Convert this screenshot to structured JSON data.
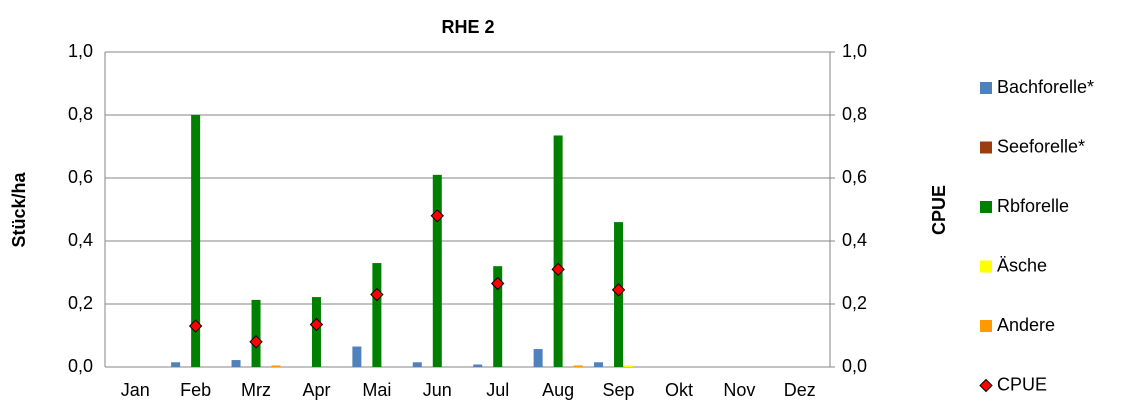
{
  "chart_data": {
    "type": "bar",
    "title": "RHE 2",
    "y_label": "Stück/ha",
    "y2_label": "CPUE",
    "categories": [
      "Jan",
      "Feb",
      "Mrz",
      "Apr",
      "Mai",
      "Jun",
      "Jul",
      "Aug",
      "Sep",
      "Okt",
      "Nov",
      "Dez"
    ],
    "series": [
      {
        "name": "Bachforelle*",
        "color": "#4f81bd",
        "values": [
          0,
          0.015,
          0.022,
          0,
          0.065,
          0.015,
          0.008,
          0.057,
          0.015,
          0,
          0,
          0
        ]
      },
      {
        "name": "Seeforelle*",
        "color": "#9c3d10",
        "values": [
          0,
          0,
          0,
          0,
          0,
          0,
          0,
          0,
          0,
          0,
          0,
          0
        ]
      },
      {
        "name": "Rbforelle",
        "color": "#008000",
        "values": [
          0,
          0.8,
          0.213,
          0.222,
          0.33,
          0.61,
          0.32,
          0.735,
          0.46,
          0,
          0,
          0
        ]
      },
      {
        "name": "Äsche",
        "color": "#ffff00",
        "values": [
          0,
          0,
          0,
          0,
          0,
          0,
          0,
          0,
          0.005,
          0,
          0,
          0
        ]
      },
      {
        "name": "Andere",
        "color": "#ff9900",
        "values": [
          0,
          0,
          0.005,
          0,
          0,
          0,
          0,
          0.005,
          0,
          0,
          0,
          0
        ]
      },
      {
        "name": "CPUE",
        "color": "#ff0000",
        "type": "scatter",
        "axis": "y2",
        "values": [
          null,
          0.13,
          0.08,
          0.135,
          0.23,
          0.48,
          0.265,
          0.31,
          0.245,
          null,
          null,
          null
        ]
      }
    ],
    "ylim": [
      0,
      1
    ],
    "yticks": [
      {
        "value": 0,
        "label": "0,0"
      },
      {
        "value": 0.2,
        "label": "0,2"
      },
      {
        "value": 0.4,
        "label": "0,4"
      },
      {
        "value": 0.6,
        "label": "0,6"
      },
      {
        "value": 0.8,
        "label": "0,8"
      },
      {
        "value": 1,
        "label": "1,0"
      }
    ],
    "y2lim": [
      0,
      1
    ],
    "y2ticks": [
      {
        "value": 0,
        "label": "0,0"
      },
      {
        "value": 0.2,
        "label": "0,2"
      },
      {
        "value": 0.4,
        "label": "0,4"
      },
      {
        "value": 0.6,
        "label": "0,6"
      },
      {
        "value": 0.8,
        "label": "0,8"
      },
      {
        "value": 1,
        "label": "1,0"
      }
    ],
    "grid": true,
    "legend": "right"
  }
}
